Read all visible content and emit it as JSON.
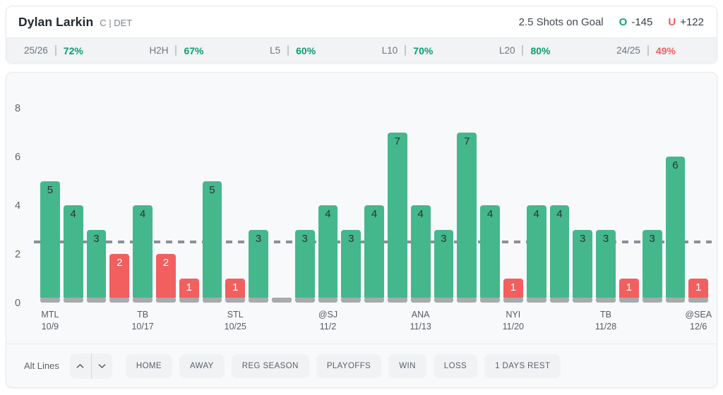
{
  "header": {
    "player_name": "Dylan Larkin",
    "position_team": "C | DET",
    "prop_line": "2.5 Shots on Goal",
    "over": {
      "label": "O",
      "odds": "-145"
    },
    "under": {
      "label": "U",
      "odds": "+122"
    }
  },
  "stats": [
    {
      "label": "25/26",
      "value": "72%",
      "trend": "over"
    },
    {
      "label": "H2H",
      "value": "67%",
      "trend": "over"
    },
    {
      "label": "L5",
      "value": "60%",
      "trend": "over"
    },
    {
      "label": "L10",
      "value": "70%",
      "trend": "over"
    },
    {
      "label": "L20",
      "value": "80%",
      "trend": "over"
    },
    {
      "label": "24/25",
      "value": "49%",
      "trend": "under"
    }
  ],
  "chart_data": {
    "type": "bar",
    "values": [
      5,
      4,
      3,
      2,
      4,
      2,
      1,
      5,
      1,
      3,
      0,
      3,
      4,
      3,
      4,
      7,
      4,
      3,
      7,
      4,
      1,
      4,
      4,
      3,
      3,
      1,
      3,
      6,
      1
    ],
    "threshold": 2.5,
    "ylim": [
      0,
      8
    ],
    "yticks": [
      0,
      2,
      4,
      6,
      8
    ],
    "x_ticks": [
      {
        "index": 0,
        "team": "MTL",
        "date": "10/9"
      },
      {
        "index": 4,
        "team": "TB",
        "date": "10/17"
      },
      {
        "index": 8,
        "team": "STL",
        "date": "10/25"
      },
      {
        "index": 12,
        "team": "@SJ",
        "date": "11/2"
      },
      {
        "index": 16,
        "team": "ANA",
        "date": "11/13"
      },
      {
        "index": 20,
        "team": "NYI",
        "date": "11/20"
      },
      {
        "index": 24,
        "team": "TB",
        "date": "11/28"
      },
      {
        "index": 28,
        "team": "@SEA",
        "date": "12/6"
      }
    ],
    "colors": {
      "over_bar": "#45b78c",
      "under_bar": "#f25f5f",
      "bar_base_stub": "#a8aaac",
      "threshold_line": "#8a9096",
      "over_bar_text": "#2a3136",
      "under_bar_text": "#ffffff"
    }
  },
  "controls": {
    "alt_lines_label": "Alt Lines",
    "filters": [
      "HOME",
      "AWAY",
      "REG SEASON",
      "PLAYOFFS",
      "WIN",
      "LOSS",
      "1 DAYS REST"
    ]
  }
}
